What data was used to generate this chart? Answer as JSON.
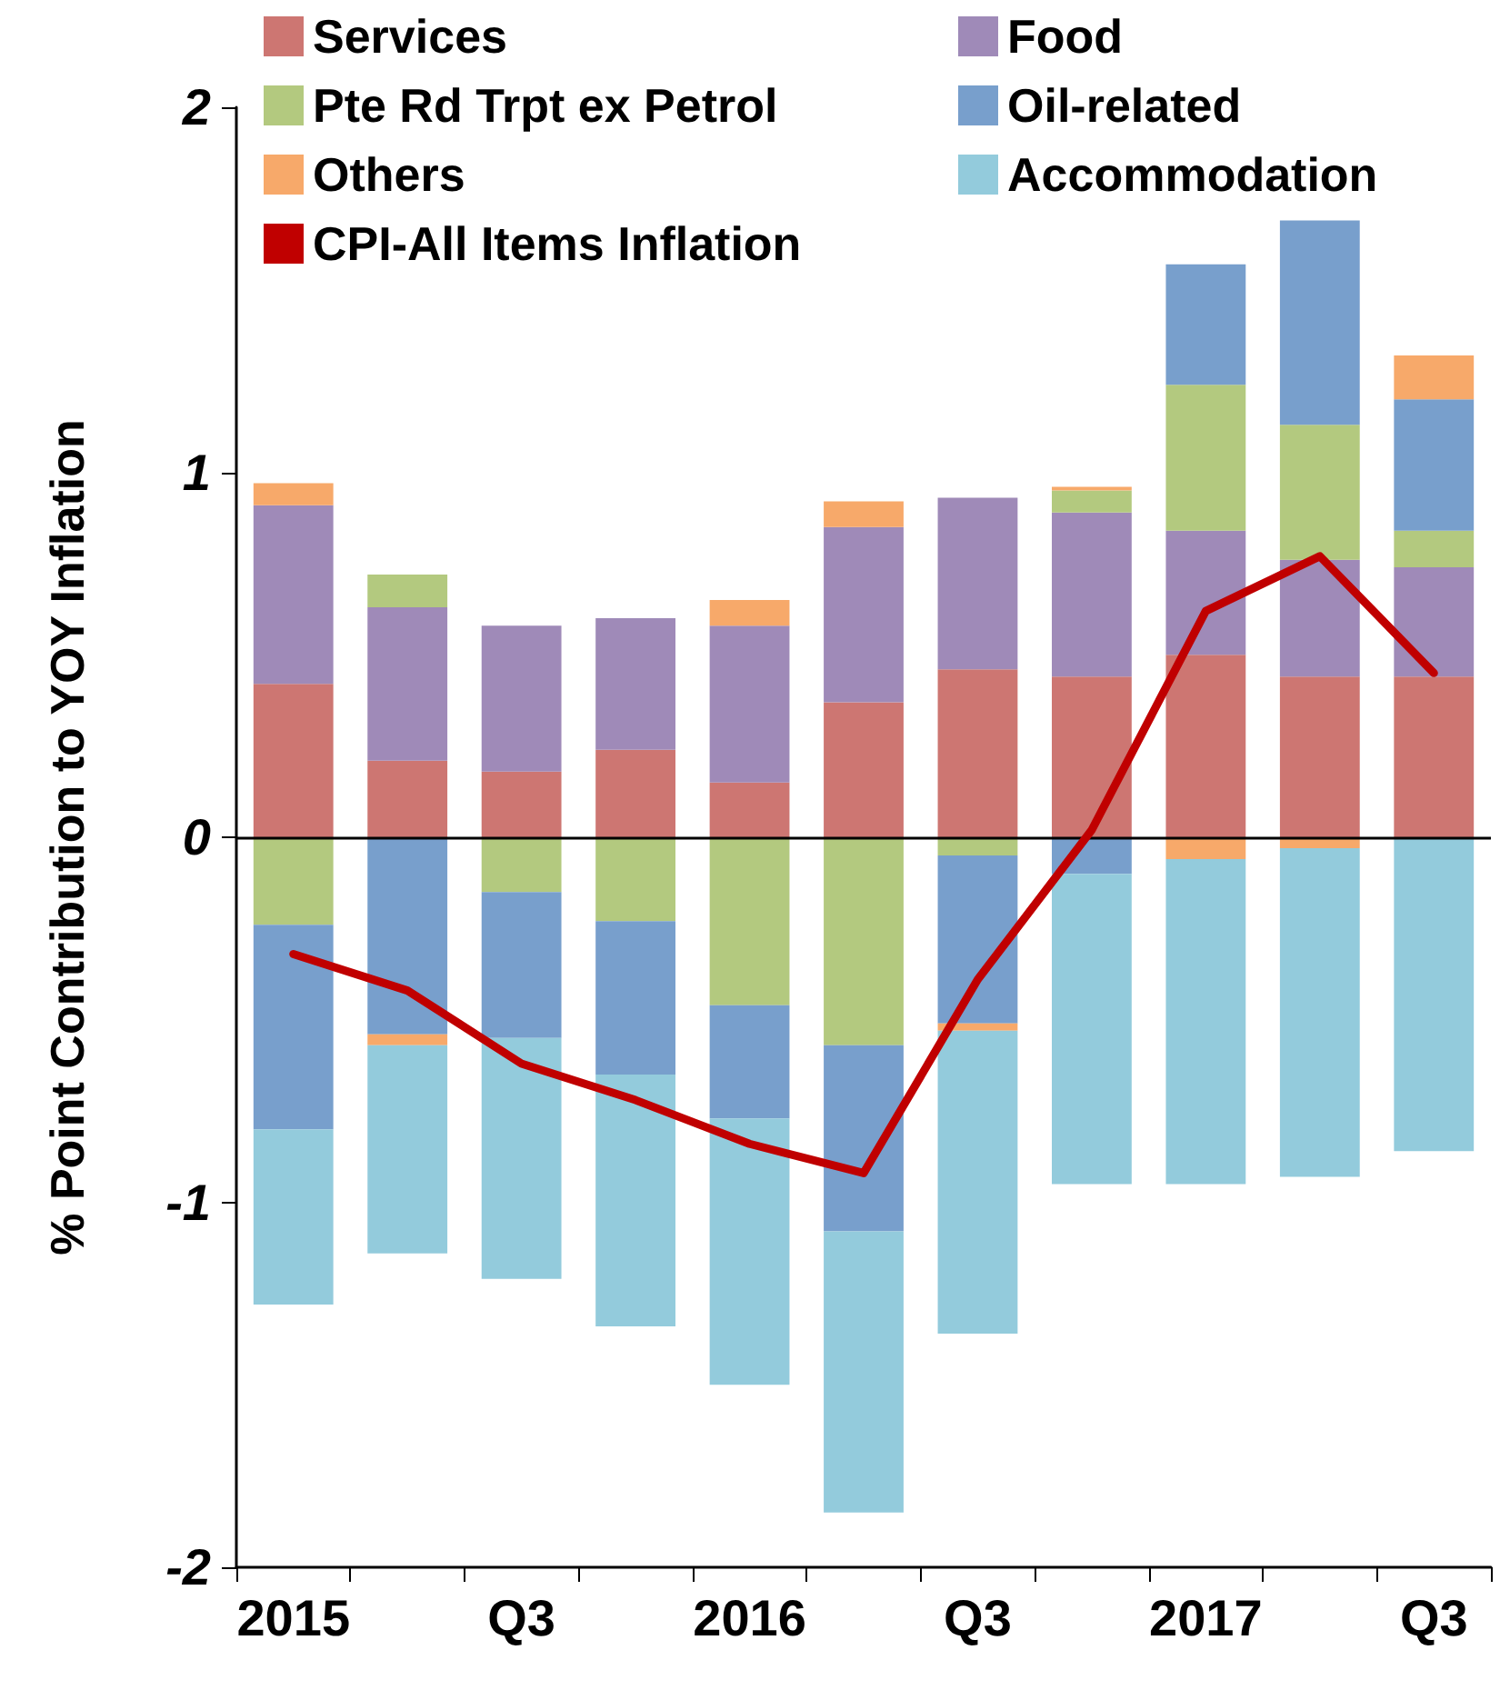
{
  "chart_data": {
    "type": "bar",
    "stacked": true,
    "ylabel": "% Point Contribution to YOY Inflation",
    "categories": [
      "2015",
      null,
      "Q3",
      null,
      "2016",
      null,
      "Q3",
      null,
      "2017",
      null,
      "Q3"
    ],
    "ylim": [
      -2,
      2
    ],
    "yticks": [
      -2,
      -1,
      0,
      1,
      2
    ],
    "ref_lines": [
      {
        "axis": "y",
        "value": 0,
        "color": "#000000"
      }
    ],
    "legend": "top",
    "marker": "none",
    "series": [
      {
        "name": "Services",
        "color": "#cd7672",
        "values": [
          0.42,
          0.21,
          0.18,
          0.24,
          0.15,
          0.37,
          0.46,
          0.44,
          0.5,
          0.44,
          0.44
        ]
      },
      {
        "name": "Food",
        "color": "#9f8ab8",
        "values": [
          0.49,
          0.42,
          0.4,
          0.36,
          0.43,
          0.48,
          0.47,
          0.45,
          0.34,
          0.32,
          0.3
        ]
      },
      {
        "name": "Pte Rd Trpt ex Petrol",
        "color": "#b3c97f",
        "values": [
          -0.24,
          0.09,
          -0.15,
          -0.23,
          -0.46,
          -0.57,
          -0.05,
          0.06,
          0.4,
          0.37,
          0.1
        ]
      },
      {
        "name": "Oil-related",
        "color": "#789fcc",
        "values": [
          -0.56,
          -0.54,
          -0.4,
          -0.42,
          -0.31,
          -0.51,
          -0.46,
          -0.1,
          0.33,
          0.56,
          0.36
        ]
      },
      {
        "name": "Others",
        "color": "#f7a96a",
        "values": [
          0.06,
          -0.03,
          0,
          0,
          0.07,
          0.07,
          -0.02,
          0.01,
          -0.06,
          -0.03,
          0.12
        ]
      },
      {
        "name": "Accommodation",
        "color": "#93cbdc",
        "values": [
          -0.48,
          -0.57,
          -0.66,
          -0.69,
          -0.73,
          -0.77,
          -0.83,
          -0.85,
          -0.89,
          -0.9,
          -0.86
        ]
      },
      {
        "name": "CPI-All Items Inflation",
        "type": "line",
        "color": "#c00000",
        "values": [
          -0.32,
          -0.42,
          -0.62,
          -0.72,
          -0.84,
          -0.92,
          -0.39,
          0.02,
          0.62,
          0.77,
          0.45
        ]
      }
    ]
  }
}
